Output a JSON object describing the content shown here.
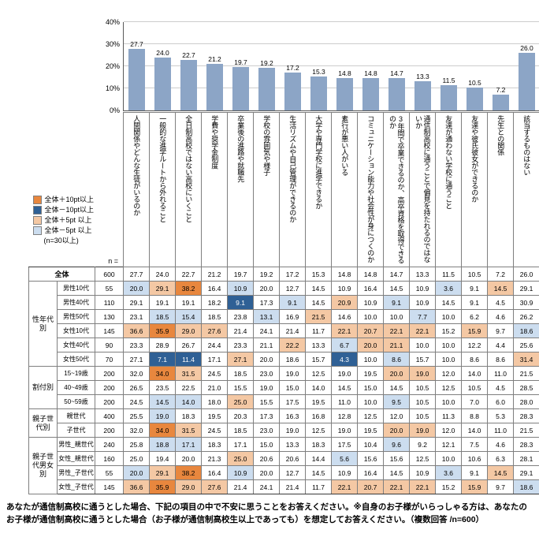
{
  "chart_data": {
    "type": "bar",
    "title": "",
    "categories": [
      "人間関係やどんな生徒がいるのか",
      "一般的な進学ルートから外れること",
      "全日制高校ではない高校にいくこと",
      "学費や奨学金制度",
      "卒業後の進路や就職先",
      "学校の雰囲気や様子",
      "生活リズムや自己管理ができるのか",
      "大学や専門学校に進学できるか",
      "素行が悪い人がいる",
      "コミュニケーション能力や社会性が身につくのか",
      "3年間で卒業できるのか、高卒資格を取得できるのか",
      "通信制高校に通うことで偏見を持たれるのではないか",
      "友達が通わない学校に通うこと",
      "友達や彼氏彼女ができるのか",
      "先生との関係",
      "該当するものはない"
    ],
    "values": [
      27.7,
      24.0,
      22.7,
      21.2,
      19.7,
      19.2,
      17.2,
      15.3,
      14.8,
      14.8,
      14.7,
      13.3,
      11.5,
      10.5,
      7.2,
      26.0
    ],
    "xlabel": "",
    "ylabel": "",
    "ylim": [
      0,
      40
    ],
    "yticks": [
      "0%",
      "10%",
      "20%",
      "30%",
      "40%"
    ],
    "grid": true,
    "legend_position": "none",
    "bar_color": "#8CA5C6"
  },
  "colors": {
    "plus10": "#E8873E",
    "minus10": "#2F6095",
    "plus5": "#F4C8A4",
    "minus5": "#CCDDEF",
    "dark_text": "#ffffff"
  },
  "legend": {
    "items": [
      {
        "label": "全体＋10pt以上",
        "color": "#E8873E"
      },
      {
        "label": "全体－10pt以上",
        "color": "#2F6095"
      },
      {
        "label": "全体＋5pt 以上",
        "color": "#F4C8A4"
      },
      {
        "label": "全体－5pt 以上",
        "color": "#CCDDEF"
      }
    ],
    "note": "(n=30以上)"
  },
  "table": {
    "n_label": "n =",
    "groups": [
      {
        "label": "",
        "rows": [
          {
            "label": "全体",
            "n": 600,
            "values": [
              27.7,
              24.0,
              22.7,
              21.2,
              19.7,
              19.2,
              17.2,
              15.3,
              14.8,
              14.8,
              14.7,
              13.3,
              11.5,
              10.5,
              7.2,
              26.0
            ]
          }
        ]
      },
      {
        "label": "性年代別",
        "rows": [
          {
            "label": "男性10代",
            "n": 55,
            "values": [
              20.0,
              29.1,
              38.2,
              16.4,
              10.9,
              20.0,
              12.7,
              14.5,
              10.9,
              16.4,
              14.5,
              10.9,
              3.6,
              9.1,
              14.5,
              29.1
            ]
          },
          {
            "label": "男性40代",
            "n": 110,
            "values": [
              29.1,
              19.1,
              19.1,
              18.2,
              9.1,
              17.3,
              9.1,
              14.5,
              20.9,
              10.9,
              9.1,
              10.9,
              14.5,
              9.1,
              4.5,
              30.9
            ]
          },
          {
            "label": "男性50代",
            "n": 130,
            "values": [
              23.1,
              18.5,
              15.4,
              18.5,
              23.8,
              13.1,
              16.9,
              21.5,
              14.6,
              10.0,
              10.0,
              7.7,
              10.0,
              6.2,
              4.6,
              26.2
            ]
          },
          {
            "label": "女性10代",
            "n": 145,
            "values": [
              36.6,
              35.9,
              29.0,
              27.6,
              21.4,
              24.1,
              21.4,
              11.7,
              22.1,
              20.7,
              22.1,
              22.1,
              15.2,
              15.9,
              9.7,
              18.6
            ]
          },
          {
            "label": "女性40代",
            "n": 90,
            "values": [
              23.3,
              28.9,
              26.7,
              24.4,
              23.3,
              21.1,
              22.2,
              13.3,
              6.7,
              20.0,
              21.1,
              10.0,
              10.0,
              12.2,
              4.4,
              25.6
            ]
          },
          {
            "label": "女性50代",
            "n": 70,
            "values": [
              27.1,
              7.1,
              11.4,
              17.1,
              27.1,
              20.0,
              18.6,
              15.7,
              4.3,
              10.0,
              8.6,
              15.7,
              10.0,
              8.6,
              8.6,
              31.4
            ]
          }
        ]
      },
      {
        "label": "割付別",
        "rows": [
          {
            "label": "15~19歳",
            "n": 200,
            "values": [
              32.0,
              34.0,
              31.5,
              24.5,
              18.5,
              23.0,
              19.0,
              12.5,
              19.0,
              19.5,
              20.0,
              19.0,
              12.0,
              14.0,
              11.0,
              21.5
            ]
          },
          {
            "label": "40~49歳",
            "n": 200,
            "values": [
              26.5,
              23.5,
              22.5,
              21.0,
              15.5,
              19.0,
              15.0,
              14.0,
              14.5,
              15.0,
              14.5,
              10.5,
              12.5,
              10.5,
              4.5,
              28.5
            ]
          },
          {
            "label": "50~59歳",
            "n": 200,
            "values": [
              24.5,
              14.5,
              14.0,
              18.0,
              25.0,
              15.5,
              17.5,
              19.5,
              11.0,
              10.0,
              9.5,
              10.5,
              10.0,
              7.0,
              6.0,
              28.0
            ]
          }
        ]
      },
      {
        "label": "親子世代別",
        "rows": [
          {
            "label": "親世代",
            "n": 400,
            "values": [
              25.5,
              19.0,
              18.3,
              19.5,
              20.3,
              17.3,
              16.3,
              16.8,
              12.8,
              12.5,
              12.0,
              10.5,
              11.3,
              8.8,
              5.3,
              28.3
            ]
          },
          {
            "label": "子世代",
            "n": 200,
            "values": [
              32.0,
              34.0,
              31.5,
              24.5,
              18.5,
              23.0,
              19.0,
              12.5,
              19.0,
              19.5,
              20.0,
              19.0,
              12.0,
              14.0,
              11.0,
              21.5
            ]
          }
        ]
      },
      {
        "label": "親子世代男女別",
        "rows": [
          {
            "label": "男性_親世代",
            "n": 240,
            "values": [
              25.8,
              18.8,
              17.1,
              18.3,
              17.1,
              15.0,
              13.3,
              18.3,
              17.5,
              10.4,
              9.6,
              9.2,
              12.1,
              7.5,
              4.6,
              28.3
            ]
          },
          {
            "label": "女性_親世代",
            "n": 160,
            "values": [
              25.0,
              19.4,
              20.0,
              21.3,
              25.0,
              20.6,
              20.6,
              14.4,
              5.6,
              15.6,
              15.6,
              12.5,
              10.0,
              10.6,
              6.3,
              28.1
            ]
          },
          {
            "label": "男性_子世代",
            "n": 55,
            "values": [
              20.0,
              29.1,
              38.2,
              16.4,
              10.9,
              20.0,
              12.7,
              14.5,
              10.9,
              16.4,
              14.5,
              10.9,
              3.6,
              9.1,
              14.5,
              29.1
            ]
          },
          {
            "label": "女性_子世代",
            "n": 145,
            "values": [
              36.6,
              35.9,
              29.0,
              27.6,
              21.4,
              24.1,
              21.4,
              11.7,
              22.1,
              20.7,
              22.1,
              22.1,
              15.2,
              15.9,
              9.7,
              18.6
            ]
          }
        ]
      }
    ]
  },
  "footer": {
    "text": "あなたが通信制高校に通うとした場合、下記の項目の中で不安に思うことをお答えください。※自身のお子様がいらっしゃる方は、あなたのお子様が通信制高校に通うとした場合（お子様が通信制高校生以上であっても）を想定してお答えください。（複数回答 /n=600）"
  }
}
